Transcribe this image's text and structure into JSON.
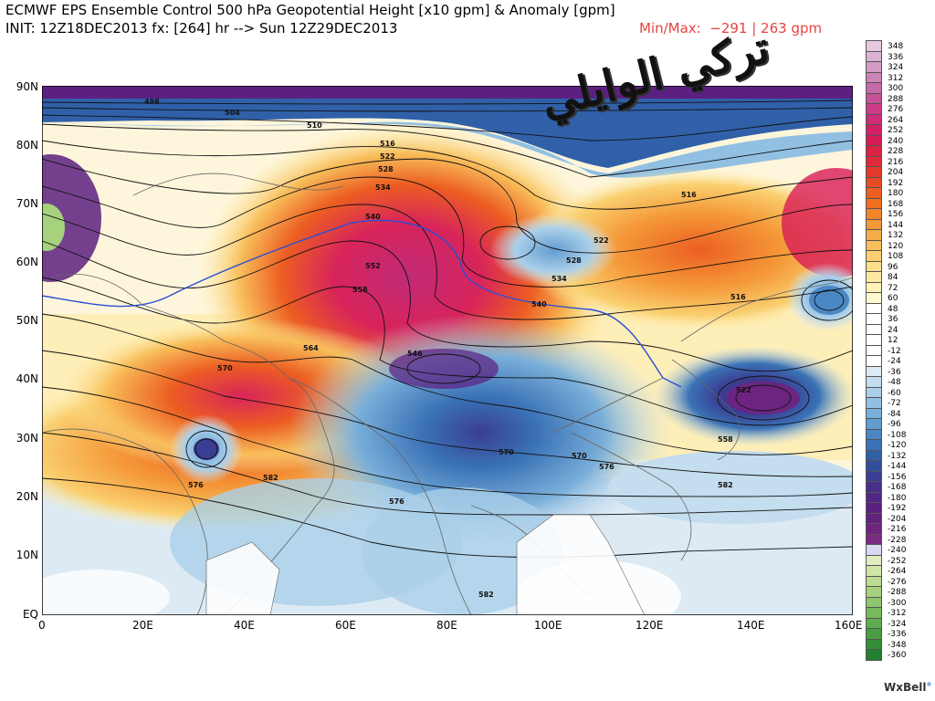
{
  "header": {
    "title_line1": "ECMWF EPS Ensemble Control 500 hPa Geopotential Height [x10 gpm] & Anomaly [gpm]",
    "title_line2": "INIT: 12Z18DEC2013 fx: [264] hr --> Sun 12Z29DEC2013",
    "minmax": "Min/Max:  −291 | 263 gpm"
  },
  "axes": {
    "y_labels": [
      "90N",
      "80N",
      "70N",
      "60N",
      "50N",
      "40N",
      "30N",
      "20N",
      "10N",
      "EQ"
    ],
    "x_labels": [
      "0",
      "20E",
      "40E",
      "60E",
      "80E",
      "100E",
      "120E",
      "140E",
      "160E"
    ]
  },
  "contour_labels": [
    {
      "text": "498"
    },
    {
      "text": "504"
    },
    {
      "text": "510"
    },
    {
      "text": "516"
    },
    {
      "text": "522"
    },
    {
      "text": "528"
    },
    {
      "text": "534"
    },
    {
      "text": "540"
    },
    {
      "text": "552"
    },
    {
      "text": "558"
    },
    {
      "text": "564"
    },
    {
      "text": "570"
    },
    {
      "text": "576"
    },
    {
      "text": "582"
    },
    {
      "text": "546"
    }
  ],
  "colorbar": {
    "labels": [
      "348",
      "336",
      "324",
      "312",
      "300",
      "288",
      "276",
      "264",
      "252",
      "240",
      "228",
      "216",
      "204",
      "192",
      "180",
      "168",
      "156",
      "144",
      "132",
      "120",
      "108",
      "96",
      "84",
      "72",
      "60",
      "48",
      "36",
      "24",
      "12",
      "-12",
      "-24",
      "-36",
      "-48",
      "-60",
      "-72",
      "-84",
      "-96",
      "-108",
      "-120",
      "-132",
      "-144",
      "-156",
      "-168",
      "-180",
      "-192",
      "-204",
      "-216",
      "-228",
      "-240",
      "-252",
      "-264",
      "-276",
      "-288",
      "-300",
      "-312",
      "-324",
      "-336",
      "-348",
      "-360"
    ],
    "colors": [
      "#e8c8e0",
      "#dcb2d4",
      "#d39ac6",
      "#cc84b8",
      "#c56aa8",
      "#c85098",
      "#cc3c88",
      "#d02c78",
      "#d42066",
      "#d81a55",
      "#dc2046",
      "#e02a38",
      "#e4382c",
      "#e84a26",
      "#ec5e22",
      "#f07020",
      "#f2842a",
      "#f49838",
      "#f6ac48",
      "#f8be5a",
      "#fad070",
      "#fcdf88",
      "#fde9a0",
      "#fef2b8",
      "#fff8d0",
      "#ffffff",
      "#ffffff",
      "#ffffff",
      "#ffffff",
      "#ffffff",
      "#ffffff",
      "#ddeaf4",
      "#c4ddef",
      "#aacfe9",
      "#92c0e2",
      "#7aafd9",
      "#629dd0",
      "#4a88c4",
      "#3a72b6",
      "#3060a8",
      "#304e9c",
      "#3a3e92",
      "#46308a",
      "#522684",
      "#5c2080",
      "#66207e",
      "#702480",
      "#7a2a84",
      "#d8d8f0",
      "#e0eec0",
      "#cfe6a8",
      "#bcdc92",
      "#a6d27e",
      "#8ec66c",
      "#76ba5c",
      "#5eac4e",
      "#489e42",
      "#348e38",
      "#228030"
    ]
  },
  "branding": {
    "name": "WxBell",
    "suffix": "°"
  },
  "watermark": {
    "text": "تركي الوايلي"
  }
}
